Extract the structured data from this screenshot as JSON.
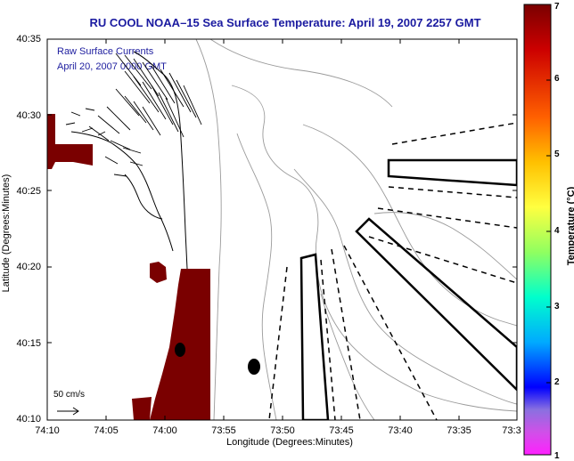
{
  "title": "RU COOL  NOAA–15  Sea Surface Temperature:  April 19, 2007 2257 GMT",
  "notes": [
    "Raw Surface Currents",
    "April 20, 2007 0000 GMT"
  ],
  "axes": {
    "xlabel": "Longitude (Degrees:Minutes)",
    "ylabel": "Latitude (Degrees:Minutes)",
    "xticks": [
      "74:10",
      "74:05",
      "74:00",
      "73:55",
      "73:50",
      "73:45",
      "73:40",
      "73:35",
      "73:3"
    ],
    "yticks": [
      "40:35",
      "40:30",
      "40:25",
      "40:20",
      "40:15",
      "40:10"
    ]
  },
  "scale_label": "50 cm/s",
  "colorbar": {
    "title": "Temperature (°C)",
    "ticks": [
      "7",
      "6",
      "5",
      "4",
      "3",
      "2",
      "1"
    ],
    "min": 1,
    "max": 7
  },
  "colors": {
    "land": "#7a0000",
    "title": "#1a1aa0",
    "contour": "#9a9a9a"
  }
}
